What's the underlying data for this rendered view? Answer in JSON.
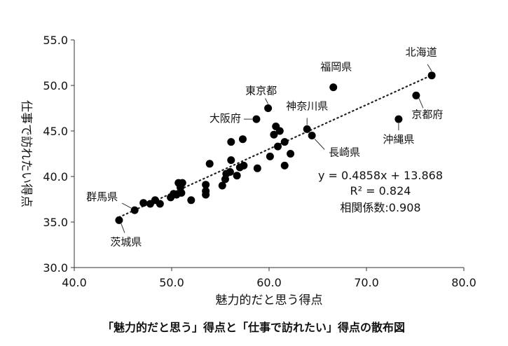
{
  "chart_data": {
    "type": "scatter",
    "caption": "「魅力的だと思う」得点と「仕事で訪れたい」得点の散布図",
    "xlabel": "魅力的だと思う得点",
    "ylabel": "仕事で訪れたい得点",
    "xlim": [
      40.0,
      80.0
    ],
    "ylim": [
      30.0,
      55.0
    ],
    "x_ticks": [
      "40.0",
      "50.0",
      "60.0",
      "70.0",
      "80.0"
    ],
    "y_ticks": [
      "30.0",
      "35.0",
      "40.0",
      "45.0",
      "50.0",
      "55.0"
    ],
    "trendline": {
      "style": "dotted",
      "slope": 0.4858,
      "intercept": 13.868
    },
    "annotations": {
      "equation": "y = 0.4858x + 13.868",
      "r_squared": "R² = 0.824",
      "correlation": "相関係数:0.908"
    },
    "points": [
      {
        "x": 76.7,
        "y": 51.1,
        "label": "北海道"
      },
      {
        "x": 66.6,
        "y": 49.8,
        "label": "福岡県"
      },
      {
        "x": 75.1,
        "y": 48.9,
        "label": "京都府"
      },
      {
        "x": 59.9,
        "y": 47.5,
        "label": "東京都"
      },
      {
        "x": 73.3,
        "y": 46.3,
        "label": "沖縄県"
      },
      {
        "x": 58.7,
        "y": 46.3,
        "label": "大阪府"
      },
      {
        "x": 63.9,
        "y": 45.2,
        "label": "神奈川県"
      },
      {
        "x": 64.4,
        "y": 44.5,
        "label": "長崎県"
      },
      {
        "x": 46.2,
        "y": 36.3,
        "label": "群馬県"
      },
      {
        "x": 44.6,
        "y": 35.2,
        "label": "茨城県"
      },
      {
        "x": 60.7,
        "y": 45.5
      },
      {
        "x": 61.1,
        "y": 45.0
      },
      {
        "x": 60.5,
        "y": 44.6
      },
      {
        "x": 56.1,
        "y": 43.8
      },
      {
        "x": 57.3,
        "y": 44.1
      },
      {
        "x": 61.6,
        "y": 43.8
      },
      {
        "x": 60.9,
        "y": 43.3
      },
      {
        "x": 62.2,
        "y": 42.5
      },
      {
        "x": 60.1,
        "y": 42.2
      },
      {
        "x": 56.1,
        "y": 41.8
      },
      {
        "x": 57.4,
        "y": 41.2
      },
      {
        "x": 58.8,
        "y": 40.9
      },
      {
        "x": 61.6,
        "y": 41.2
      },
      {
        "x": 57.0,
        "y": 41.0
      },
      {
        "x": 56.0,
        "y": 40.5
      },
      {
        "x": 55.6,
        "y": 40.3
      },
      {
        "x": 56.7,
        "y": 40.1
      },
      {
        "x": 55.5,
        "y": 39.7
      },
      {
        "x": 55.2,
        "y": 39.0
      },
      {
        "x": 53.9,
        "y": 41.4
      },
      {
        "x": 51.1,
        "y": 39.3
      },
      {
        "x": 50.7,
        "y": 39.3
      },
      {
        "x": 50.9,
        "y": 38.8
      },
      {
        "x": 51.0,
        "y": 38.2
      },
      {
        "x": 50.5,
        "y": 38.0
      },
      {
        "x": 50.2,
        "y": 38.1
      },
      {
        "x": 49.9,
        "y": 37.7
      },
      {
        "x": 53.5,
        "y": 38.4
      },
      {
        "x": 53.5,
        "y": 38.0
      },
      {
        "x": 53.5,
        "y": 39.1
      },
      {
        "x": 52.0,
        "y": 37.4
      },
      {
        "x": 48.3,
        "y": 37.4
      },
      {
        "x": 47.8,
        "y": 37.0
      },
      {
        "x": 47.1,
        "y": 37.1
      },
      {
        "x": 48.8,
        "y": 37.0
      }
    ]
  }
}
